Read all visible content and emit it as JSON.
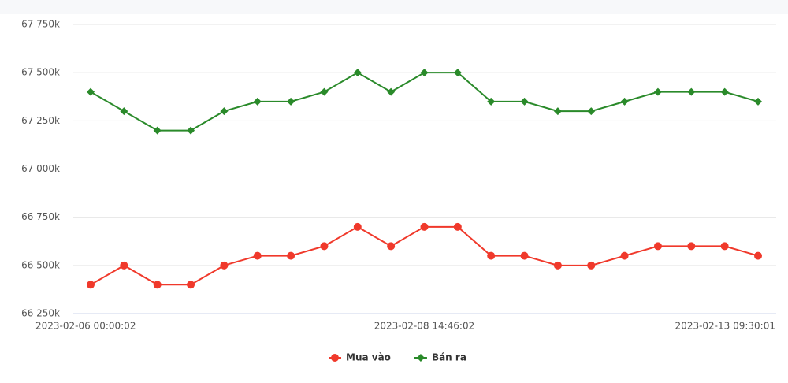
{
  "chart_data": {
    "type": "line",
    "categories": [
      "2023-02-06 00:00:02",
      null,
      null,
      null,
      null,
      null,
      null,
      null,
      null,
      null,
      "2023-02-08 14:46:02",
      null,
      null,
      null,
      null,
      null,
      null,
      null,
      null,
      null,
      "2023-02-13 09:30:01"
    ],
    "series": [
      {
        "name": "Mua vào",
        "color": "#f0392b",
        "marker": "circle",
        "values": [
          66400,
          66500,
          66400,
          66400,
          66500,
          66550,
          66550,
          66600,
          66700,
          66600,
          66700,
          66700,
          66550,
          66550,
          66500,
          66500,
          66550,
          66600,
          66600,
          66600,
          66550
        ]
      },
      {
        "name": "Bán ra",
        "color": "#2a8a2a",
        "marker": "diamond",
        "values": [
          67400,
          67300,
          67200,
          67200,
          67300,
          67350,
          67350,
          67400,
          67500,
          67400,
          67500,
          67500,
          67350,
          67350,
          67300,
          67300,
          67350,
          67400,
          67400,
          67400,
          67350
        ]
      }
    ],
    "ylim": [
      66250,
      67750
    ],
    "yticks": [
      {
        "value": 66250,
        "label": "66 250k"
      },
      {
        "value": 66500,
        "label": "66 500k"
      },
      {
        "value": 66750,
        "label": "66 750k"
      },
      {
        "value": 67000,
        "label": "67 000k"
      },
      {
        "value": 67250,
        "label": "67 250k"
      },
      {
        "value": 67500,
        "label": "67 500k"
      },
      {
        "value": 67750,
        "label": "67 750k"
      }
    ],
    "grid": true,
    "legend": "bottom"
  }
}
